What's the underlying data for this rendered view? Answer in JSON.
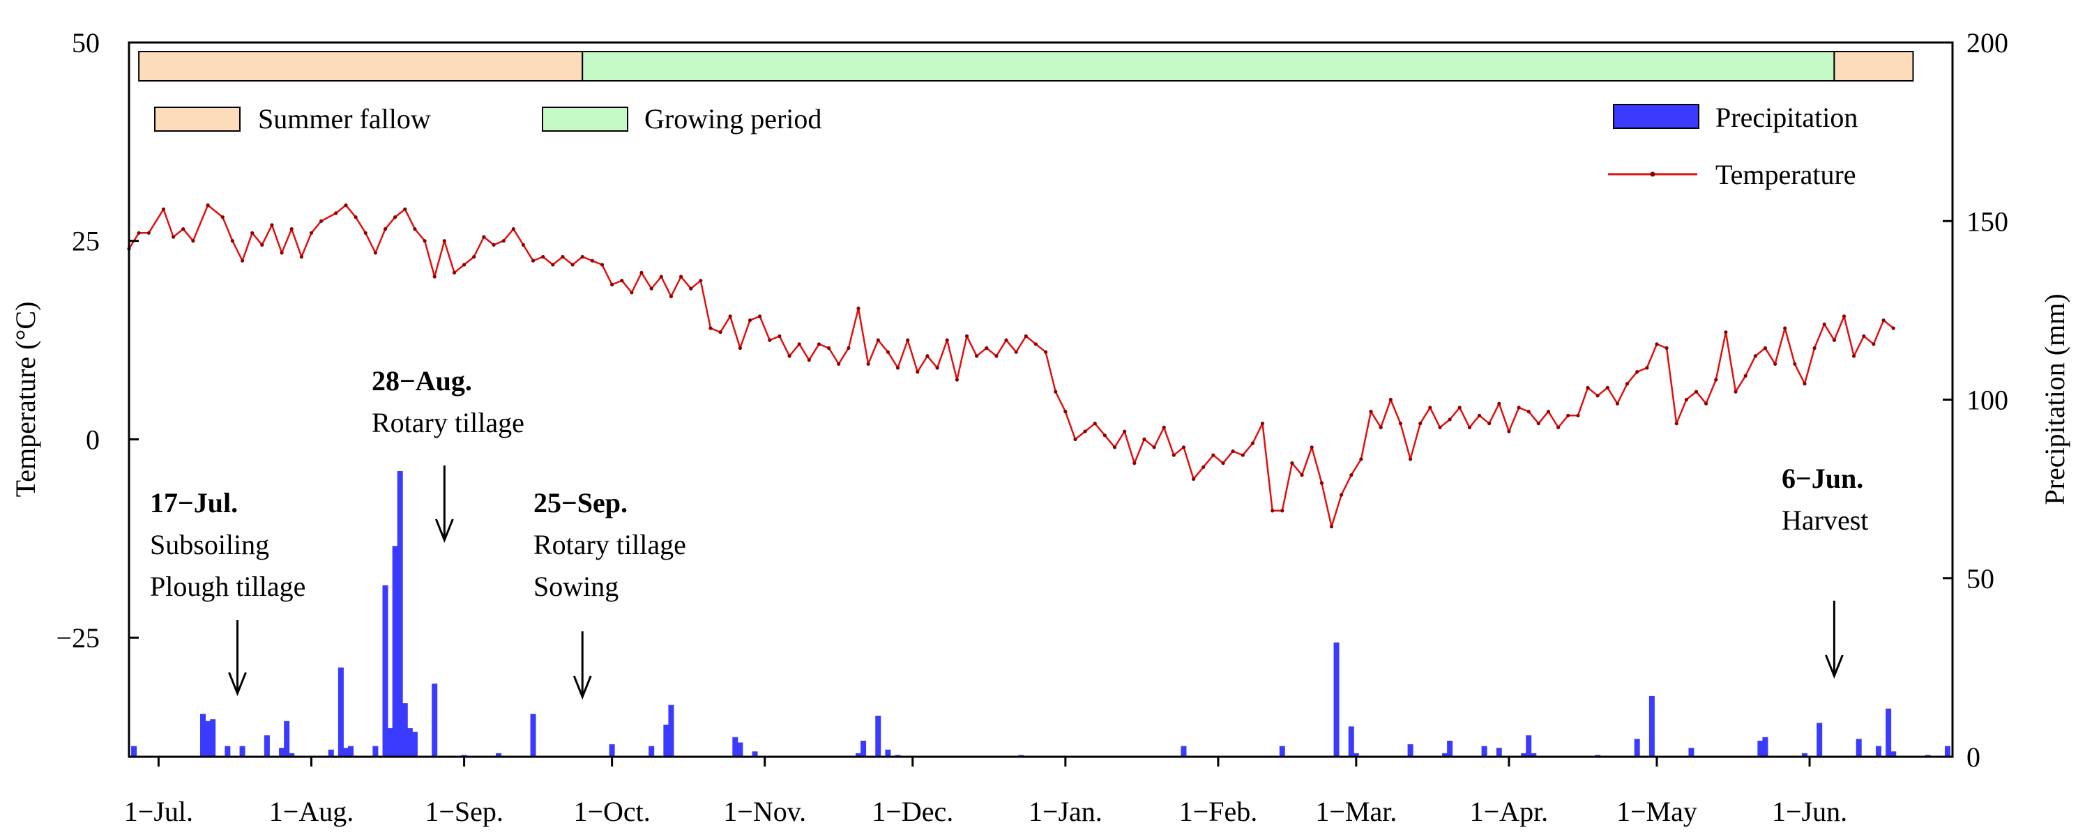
{
  "chart_data": {
    "type": "line+bar",
    "title": "",
    "x_ticks": [
      "1−Jul.",
      "1−Aug.",
      "1−Sep.",
      "1−Oct.",
      "1−Nov.",
      "1−Dec.",
      "1−Jan.",
      "1−Feb.",
      "1−Mar.",
      "1−Apr.",
      "1−May",
      "1−Jun."
    ],
    "x_range": [
      "2017-06-25",
      "2018-06-30"
    ],
    "y_left": {
      "label": "Temperature (°C)",
      "range": [
        -40,
        50
      ],
      "ticks": [
        50,
        25,
        0,
        -25
      ],
      "tick_labels": [
        "50",
        "25",
        "0",
        "−25"
      ]
    },
    "y_right": {
      "label": "Precipitation (mm)",
      "range": [
        0,
        200
      ],
      "ticks": [
        200,
        150,
        100,
        50,
        0
      ],
      "tick_labels": [
        "200",
        "150",
        "100",
        "50",
        "0"
      ]
    },
    "periods": [
      {
        "name": "Summer fallow",
        "start": "2017-06-27",
        "end": "2017-09-25",
        "color": "#fddcbb"
      },
      {
        "name": "Growing period",
        "start": "2017-09-25",
        "end": "2018-06-06",
        "color": "#c5f9c5"
      },
      {
        "name": "Summer fallow",
        "start": "2018-06-06",
        "end": "2018-06-22",
        "color": "#fddcbb"
      }
    ],
    "legend": {
      "summer_fallow": "Summer fallow",
      "growing_period": "Growing period",
      "precipitation": "Precipitation",
      "temperature": "Temperature"
    },
    "colors": {
      "precipitation": "#3b3bff",
      "temperature": "#e01010"
    },
    "annotations": [
      {
        "date_label": "17−Jul.",
        "lines": [
          "Subsoiling",
          "Plough tillage"
        ],
        "arrow_date": "2017-07-17"
      },
      {
        "date_label": "28−Aug.",
        "lines": [
          "Rotary tillage"
        ],
        "arrow_date": "2017-08-28"
      },
      {
        "date_label": "25−Sep.",
        "lines": [
          "Rotary tillage",
          "Sowing"
        ],
        "arrow_date": "2017-09-25"
      },
      {
        "date_label": "6−Jun.",
        "lines": [
          "Harvest"
        ],
        "arrow_date": "2018-06-06"
      }
    ],
    "temperature_series": {
      "name": "Temperature",
      "points": [
        [
          "2017-06-25",
          24
        ],
        [
          "2017-06-27",
          26
        ],
        [
          "2017-06-29",
          26
        ],
        [
          "2017-07-02",
          29
        ],
        [
          "2017-07-04",
          25.5
        ],
        [
          "2017-07-06",
          26.5
        ],
        [
          "2017-07-08",
          25
        ],
        [
          "2017-07-11",
          29.5
        ],
        [
          "2017-07-14",
          28
        ],
        [
          "2017-07-16",
          25
        ],
        [
          "2017-07-18",
          22.5
        ],
        [
          "2017-07-20",
          26
        ],
        [
          "2017-07-22",
          24.5
        ],
        [
          "2017-07-24",
          27
        ],
        [
          "2017-07-26",
          23.5
        ],
        [
          "2017-07-28",
          26.5
        ],
        [
          "2017-07-30",
          23
        ],
        [
          "2017-08-01",
          26
        ],
        [
          "2017-08-03",
          27.5
        ],
        [
          "2017-08-06",
          28.5
        ],
        [
          "2017-08-08",
          29.5
        ],
        [
          "2017-08-10",
          28
        ],
        [
          "2017-08-12",
          26
        ],
        [
          "2017-08-14",
          23.5
        ],
        [
          "2017-08-16",
          26.5
        ],
        [
          "2017-08-18",
          28
        ],
        [
          "2017-08-20",
          29
        ],
        [
          "2017-08-22",
          26.5
        ],
        [
          "2017-08-24",
          25
        ],
        [
          "2017-08-26",
          20.5
        ],
        [
          "2017-08-28",
          25
        ],
        [
          "2017-08-30",
          21
        ],
        [
          "2017-09-01",
          22
        ],
        [
          "2017-09-03",
          23
        ],
        [
          "2017-09-05",
          25.5
        ],
        [
          "2017-09-07",
          24.5
        ],
        [
          "2017-09-09",
          25
        ],
        [
          "2017-09-11",
          26.5
        ],
        [
          "2017-09-13",
          24.5
        ],
        [
          "2017-09-15",
          22.5
        ],
        [
          "2017-09-17",
          23
        ],
        [
          "2017-09-19",
          22
        ],
        [
          "2017-09-21",
          23
        ],
        [
          "2017-09-23",
          22
        ],
        [
          "2017-09-25",
          23
        ],
        [
          "2017-09-27",
          22.5
        ],
        [
          "2017-09-29",
          22
        ],
        [
          "2017-10-01",
          19.5
        ],
        [
          "2017-10-03",
          20
        ],
        [
          "2017-10-05",
          18.5
        ],
        [
          "2017-10-07",
          21
        ],
        [
          "2017-10-09",
          19
        ],
        [
          "2017-10-11",
          20.5
        ],
        [
          "2017-10-13",
          18
        ],
        [
          "2017-10-15",
          20.5
        ],
        [
          "2017-10-17",
          19
        ],
        [
          "2017-10-19",
          20
        ],
        [
          "2017-10-21",
          14
        ],
        [
          "2017-10-23",
          13.5
        ],
        [
          "2017-10-25",
          15.5
        ],
        [
          "2017-10-27",
          11.5
        ],
        [
          "2017-10-29",
          15
        ],
        [
          "2017-10-31",
          15.5
        ],
        [
          "2017-11-02",
          12.5
        ],
        [
          "2017-11-04",
          13
        ],
        [
          "2017-11-06",
          10.5
        ],
        [
          "2017-11-08",
          12
        ],
        [
          "2017-11-10",
          10
        ],
        [
          "2017-11-12",
          12
        ],
        [
          "2017-11-14",
          11.5
        ],
        [
          "2017-11-16",
          9.5
        ],
        [
          "2017-11-18",
          11.5
        ],
        [
          "2017-11-20",
          16.5
        ],
        [
          "2017-11-22",
          9.5
        ],
        [
          "2017-11-24",
          12.5
        ],
        [
          "2017-11-26",
          11
        ],
        [
          "2017-11-28",
          9
        ],
        [
          "2017-11-30",
          12.5
        ],
        [
          "2017-12-02",
          8.5
        ],
        [
          "2017-12-04",
          10.5
        ],
        [
          "2017-12-06",
          9
        ],
        [
          "2017-12-08",
          12.5
        ],
        [
          "2017-12-10",
          7.5
        ],
        [
          "2017-12-12",
          13
        ],
        [
          "2017-12-14",
          10.5
        ],
        [
          "2017-12-16",
          11.5
        ],
        [
          "2017-12-18",
          10.5
        ],
        [
          "2017-12-20",
          12.5
        ],
        [
          "2017-12-22",
          11
        ],
        [
          "2017-12-24",
          13
        ],
        [
          "2017-12-26",
          12
        ],
        [
          "2017-12-28",
          11
        ],
        [
          "2017-12-30",
          6
        ],
        [
          "2018-01-01",
          3.5
        ],
        [
          "2018-01-03",
          0
        ],
        [
          "2018-01-05",
          1
        ],
        [
          "2018-01-07",
          2
        ],
        [
          "2018-01-09",
          0.5
        ],
        [
          "2018-01-11",
          -1
        ],
        [
          "2018-01-13",
          1
        ],
        [
          "2018-01-15",
          -3
        ],
        [
          "2018-01-17",
          0
        ],
        [
          "2018-01-19",
          -1
        ],
        [
          "2018-01-21",
          1.5
        ],
        [
          "2018-01-23",
          -2
        ],
        [
          "2018-01-25",
          -1
        ],
        [
          "2018-01-27",
          -5
        ],
        [
          "2018-01-29",
          -3.5
        ],
        [
          "2018-01-31",
          -2
        ],
        [
          "2018-02-02",
          -3
        ],
        [
          "2018-02-04",
          -1.5
        ],
        [
          "2018-02-06",
          -2
        ],
        [
          "2018-02-08",
          -0.5
        ],
        [
          "2018-02-10",
          2
        ],
        [
          "2018-02-12",
          -9
        ],
        [
          "2018-02-14",
          -9
        ],
        [
          "2018-02-16",
          -3
        ],
        [
          "2018-02-18",
          -4.5
        ],
        [
          "2018-02-20",
          -1
        ],
        [
          "2018-02-22",
          -5.5
        ],
        [
          "2018-02-24",
          -11
        ],
        [
          "2018-02-26",
          -7
        ],
        [
          "2018-02-28",
          -4.5
        ],
        [
          "2018-03-02",
          -2.5
        ],
        [
          "2018-03-04",
          3.5
        ],
        [
          "2018-03-06",
          1.5
        ],
        [
          "2018-03-08",
          5
        ],
        [
          "2018-03-10",
          2
        ],
        [
          "2018-03-12",
          -2.5
        ],
        [
          "2018-03-14",
          2
        ],
        [
          "2018-03-16",
          4
        ],
        [
          "2018-03-18",
          1.5
        ],
        [
          "2018-03-20",
          2.5
        ],
        [
          "2018-03-22",
          4
        ],
        [
          "2018-03-24",
          1.5
        ],
        [
          "2018-03-26",
          3
        ],
        [
          "2018-03-28",
          2
        ],
        [
          "2018-03-30",
          4.5
        ],
        [
          "2018-04-01",
          1
        ],
        [
          "2018-04-03",
          4
        ],
        [
          "2018-04-05",
          3.5
        ],
        [
          "2018-04-07",
          2
        ],
        [
          "2018-04-09",
          3.5
        ],
        [
          "2018-04-11",
          1.5
        ],
        [
          "2018-04-13",
          3
        ],
        [
          "2018-04-15",
          3
        ],
        [
          "2018-04-17",
          6.5
        ],
        [
          "2018-04-19",
          5.5
        ],
        [
          "2018-04-21",
          6.5
        ],
        [
          "2018-04-23",
          4.5
        ],
        [
          "2018-04-25",
          7
        ],
        [
          "2018-04-27",
          8.5
        ],
        [
          "2018-04-29",
          9
        ],
        [
          "2018-05-01",
          12
        ],
        [
          "2018-05-03",
          11.5
        ],
        [
          "2018-05-05",
          2
        ],
        [
          "2018-05-07",
          5
        ],
        [
          "2018-05-09",
          6
        ],
        [
          "2018-05-11",
          4.5
        ],
        [
          "2018-05-13",
          7.5
        ],
        [
          "2018-05-15",
          13.5
        ],
        [
          "2018-05-17",
          6
        ],
        [
          "2018-05-19",
          8
        ],
        [
          "2018-05-21",
          10.5
        ],
        [
          "2018-05-23",
          11.5
        ],
        [
          "2018-05-25",
          9.5
        ],
        [
          "2018-05-27",
          14
        ],
        [
          "2018-05-29",
          9.5
        ],
        [
          "2018-05-31",
          7
        ],
        [
          "2018-06-02",
          11.5
        ],
        [
          "2018-06-04",
          14.5
        ],
        [
          "2018-06-06",
          12.5
        ],
        [
          "2018-06-08",
          15.5
        ],
        [
          "2018-06-10",
          10.5
        ],
        [
          "2018-06-12",
          13
        ],
        [
          "2018-06-14",
          12
        ],
        [
          "2018-06-16",
          15
        ],
        [
          "2018-06-18",
          14
        ]
      ]
    },
    "precipitation_series": {
      "name": "Precipitation",
      "points": [
        [
          "2017-06-26",
          3
        ],
        [
          "2017-07-10",
          12
        ],
        [
          "2017-07-11",
          10
        ],
        [
          "2017-07-12",
          10.5
        ],
        [
          "2017-07-15",
          3
        ],
        [
          "2017-07-18",
          3
        ],
        [
          "2017-07-23",
          6
        ],
        [
          "2017-07-26",
          2.5
        ],
        [
          "2017-07-27",
          10
        ],
        [
          "2017-07-28",
          1
        ],
        [
          "2017-08-05",
          2
        ],
        [
          "2017-08-07",
          25
        ],
        [
          "2017-08-08",
          2.5
        ],
        [
          "2017-08-09",
          3
        ],
        [
          "2017-08-14",
          3
        ],
        [
          "2017-08-16",
          48
        ],
        [
          "2017-08-17",
          8
        ],
        [
          "2017-08-18",
          59
        ],
        [
          "2017-08-19",
          80
        ],
        [
          "2017-08-20",
          15
        ],
        [
          "2017-08-21",
          8
        ],
        [
          "2017-08-22",
          7
        ],
        [
          "2017-08-26",
          20.5
        ],
        [
          "2017-09-01",
          0.5
        ],
        [
          "2017-09-08",
          1
        ],
        [
          "2017-09-15",
          12
        ],
        [
          "2017-10-01",
          3.5
        ],
        [
          "2017-10-09",
          3
        ],
        [
          "2017-10-12",
          9
        ],
        [
          "2017-10-13",
          14.5
        ],
        [
          "2017-10-26",
          5.5
        ],
        [
          "2017-10-27",
          4
        ],
        [
          "2017-10-30",
          1.5
        ],
        [
          "2017-11-20",
          1
        ],
        [
          "2017-11-21",
          4.5
        ],
        [
          "2017-11-24",
          11.5
        ],
        [
          "2017-11-26",
          2
        ],
        [
          "2017-11-28",
          0.5
        ],
        [
          "2017-12-23",
          0.5
        ],
        [
          "2018-01-25",
          3
        ],
        [
          "2018-02-14",
          3
        ],
        [
          "2018-02-25",
          32
        ],
        [
          "2018-02-28",
          8.5
        ],
        [
          "2018-03-01",
          1
        ],
        [
          "2018-03-12",
          3.5
        ],
        [
          "2018-03-19",
          1
        ],
        [
          "2018-03-20",
          4.5
        ],
        [
          "2018-03-27",
          3
        ],
        [
          "2018-03-30",
          2.5
        ],
        [
          "2018-04-04",
          1
        ],
        [
          "2018-04-05",
          6
        ],
        [
          "2018-04-06",
          1
        ],
        [
          "2018-04-19",
          0.5
        ],
        [
          "2018-04-27",
          5
        ],
        [
          "2018-04-30",
          17
        ],
        [
          "2018-05-08",
          2.5
        ],
        [
          "2018-05-22",
          4.5
        ],
        [
          "2018-05-23",
          5.5
        ],
        [
          "2018-05-31",
          1
        ],
        [
          "2018-06-03",
          9.5
        ],
        [
          "2018-06-11",
          5
        ],
        [
          "2018-06-15",
          3
        ],
        [
          "2018-06-17",
          13.5
        ],
        [
          "2018-06-18",
          1.5
        ],
        [
          "2018-06-25",
          0.5
        ],
        [
          "2018-06-29",
          3
        ]
      ]
    }
  }
}
